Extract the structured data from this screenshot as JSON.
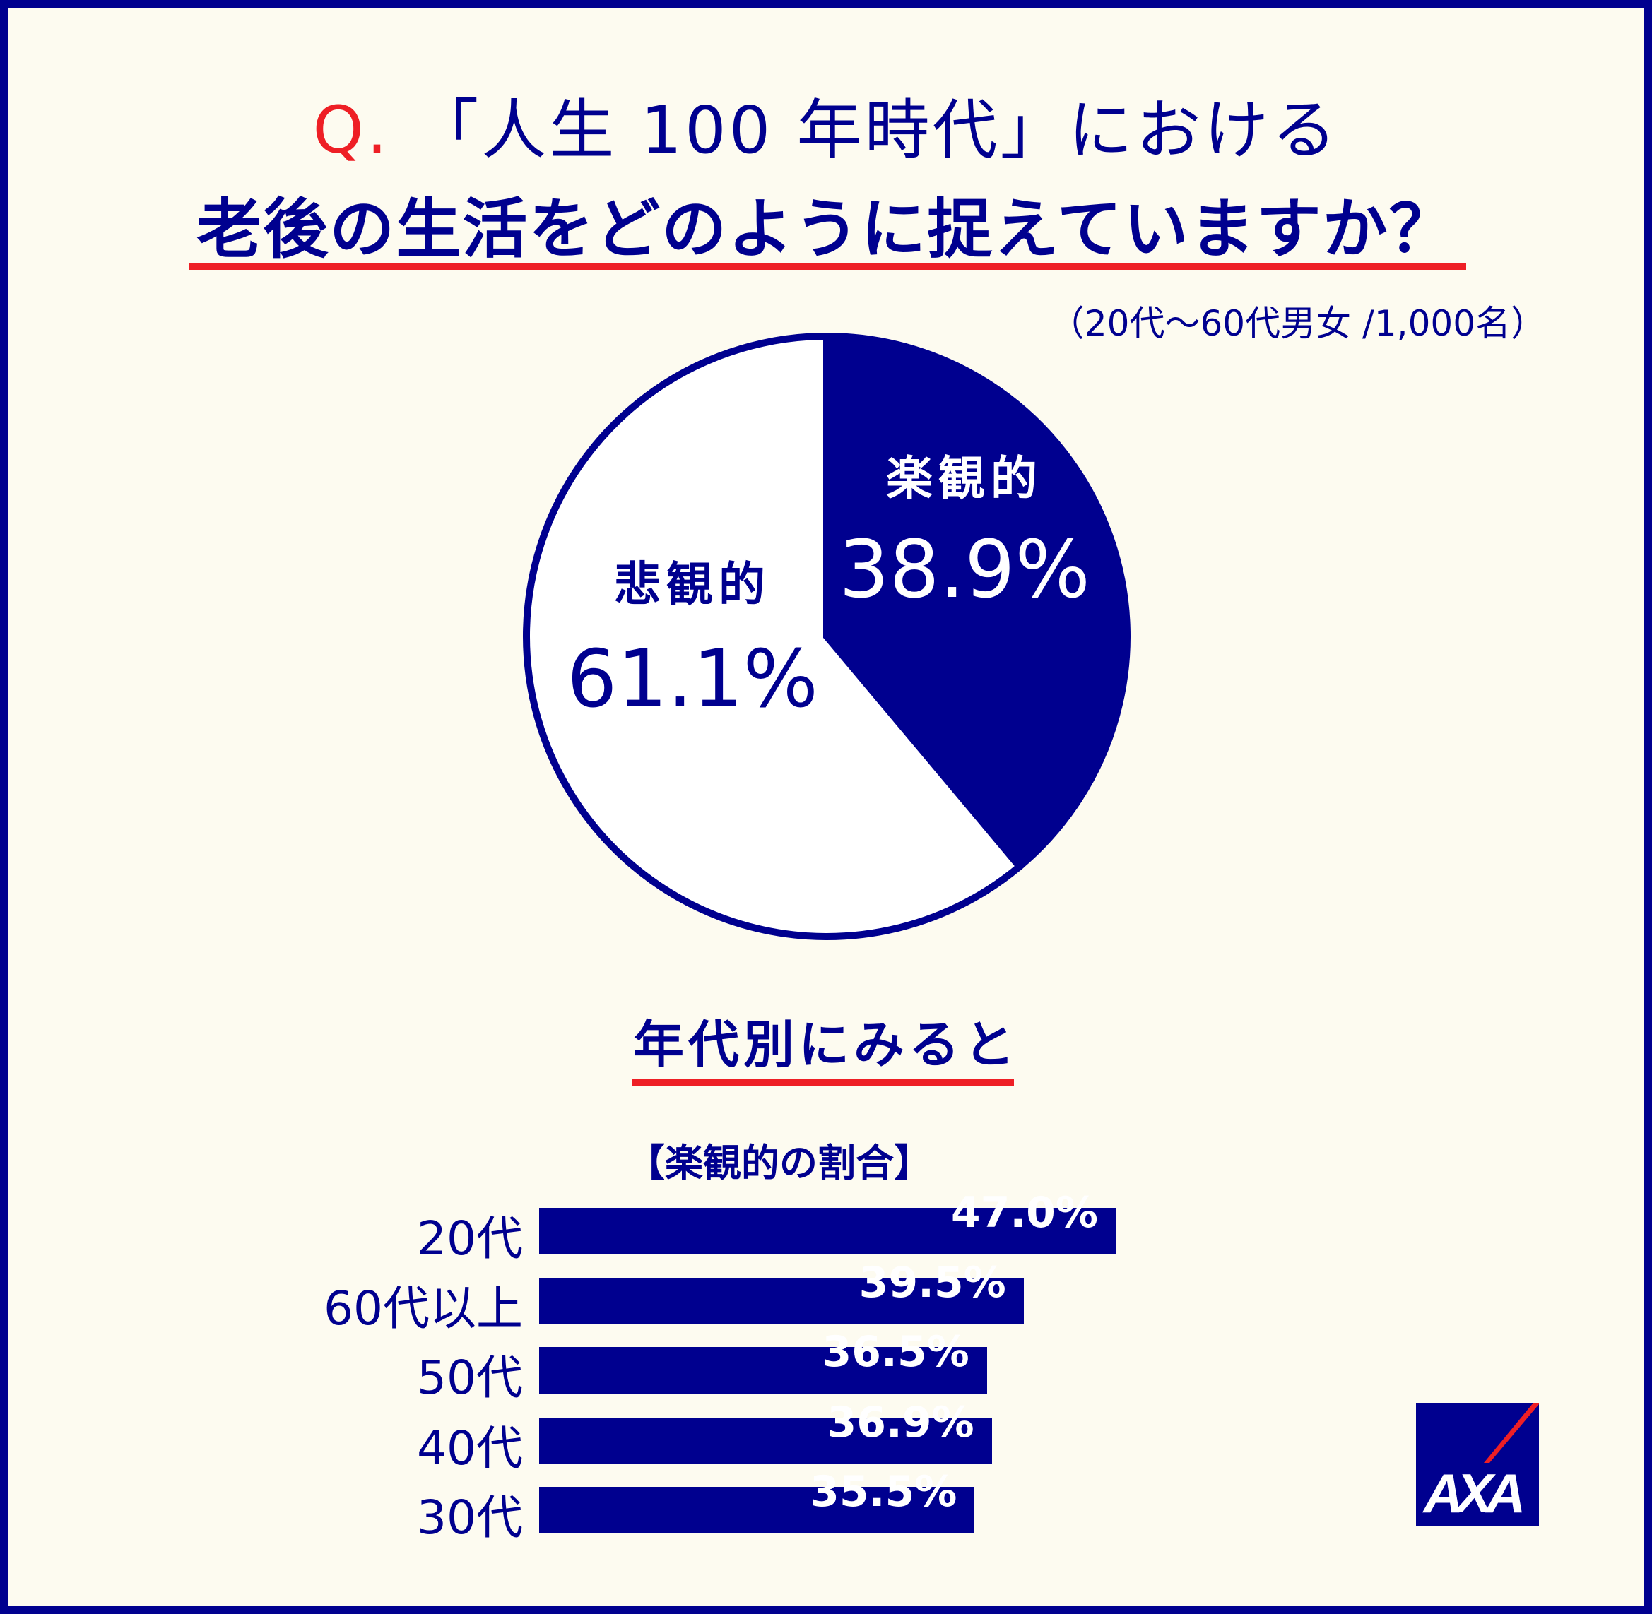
{
  "title": {
    "q_prefix": "Q.",
    "line1": "「人生 100 年時代」における",
    "line2": "老後の生活をどのように捉えていますか？"
  },
  "subtitle": "（20代～60代男女 /1,000名）",
  "colors": {
    "navy": "#00008f",
    "red": "#ee1f25",
    "background": "#fdfbf0"
  },
  "section_heading": "年代別にみると",
  "bar_heading": "【楽観的の割合】",
  "logo_text": "AXA",
  "chart_data": [
    {
      "type": "pie",
      "slices": [
        {
          "label": "楽観的",
          "value": 38.9,
          "display": "38.9%",
          "color": "#00008f"
        },
        {
          "label": "悲観的",
          "value": 61.1,
          "display": "61.1%",
          "color": "#ffffff"
        }
      ]
    },
    {
      "type": "bar",
      "orientation": "horizontal",
      "categories": [
        "20代",
        "60代以上",
        "50代",
        "40代",
        "30代"
      ],
      "values": [
        47.0,
        39.5,
        36.5,
        36.9,
        35.5
      ],
      "labels": [
        "47.0%",
        "39.5%",
        "36.5%",
        "36.9%",
        "35.5%"
      ]
    }
  ]
}
